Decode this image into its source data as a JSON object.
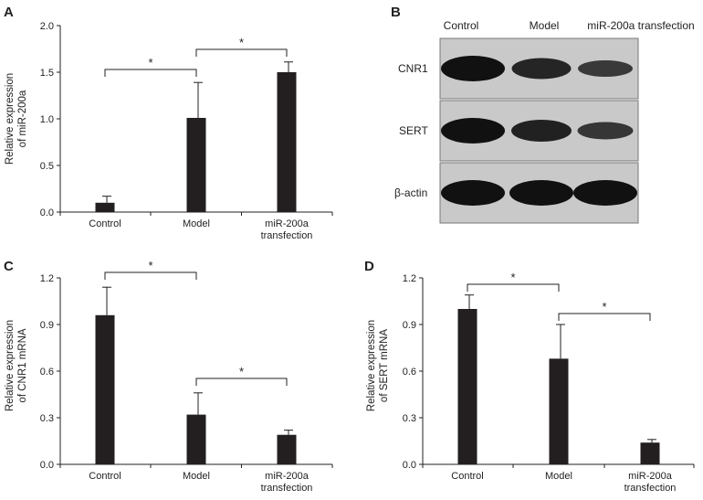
{
  "chart_data": [
    {
      "panel": "A",
      "type": "bar",
      "categories": [
        [
          "Control"
        ],
        [
          "Model"
        ],
        [
          "miR-200a",
          "transfection"
        ]
      ],
      "values": [
        0.1,
        1.01,
        1.5
      ],
      "errors": [
        0.07,
        0.38,
        0.11
      ],
      "ylabel": [
        "Relative expression",
        "of miR-200a"
      ],
      "ylim": [
        0,
        2.0
      ],
      "yticks": [
        "0.0",
        "0.5",
        "1.0",
        "1.5",
        "2.0"
      ],
      "significance": [
        {
          "from": 0,
          "to": 1,
          "label": "*"
        },
        {
          "from": 1,
          "to": 2,
          "label": "*"
        }
      ]
    },
    {
      "panel": "C",
      "type": "bar",
      "categories": [
        [
          "Control"
        ],
        [
          "Model"
        ],
        [
          "miR-200a",
          "transfection"
        ]
      ],
      "values": [
        0.96,
        0.32,
        0.19
      ],
      "errors": [
        0.18,
        0.14,
        0.03
      ],
      "ylabel": [
        "Relative expression",
        "of CNR1 mRNA"
      ],
      "ylim": [
        0,
        1.2
      ],
      "yticks": [
        "0.0",
        "0.3",
        "0.6",
        "0.9",
        "1.2"
      ],
      "significance": [
        {
          "from": 0,
          "to": 1,
          "label": "*"
        },
        {
          "from": 1,
          "to": 2,
          "label": "*"
        }
      ]
    },
    {
      "panel": "D",
      "type": "bar",
      "categories": [
        [
          "Control"
        ],
        [
          "Model"
        ],
        [
          "miR-200a",
          "transfection"
        ]
      ],
      "values": [
        1.0,
        0.68,
        0.14
      ],
      "errors": [
        0.09,
        0.22,
        0.02
      ],
      "ylabel": [
        "Relative expression",
        "of SERT mRNA"
      ],
      "ylim": [
        0,
        1.2
      ],
      "yticks": [
        "0.0",
        "0.3",
        "0.6",
        "0.9",
        "1.2"
      ],
      "significance": [
        {
          "from": 0,
          "to": 1,
          "label": "*"
        },
        {
          "from": 1,
          "to": 2,
          "label": "*"
        }
      ]
    }
  ],
  "blot": {
    "panel": "B",
    "columns": [
      "Control",
      "Model",
      "miR-200a transfection"
    ],
    "rows": [
      {
        "label": "CNR1",
        "intensity": [
          1.0,
          0.75,
          0.5
        ]
      },
      {
        "label": "SERT",
        "intensity": [
          1.0,
          0.8,
          0.55
        ]
      },
      {
        "label": "β-actin",
        "intensity": [
          1.0,
          1.0,
          1.0
        ]
      }
    ]
  },
  "style": {
    "bar_color": "#231f20",
    "axis_color": "#231f20",
    "blot_background": "#c9c9c9",
    "band_color": "#111111"
  }
}
